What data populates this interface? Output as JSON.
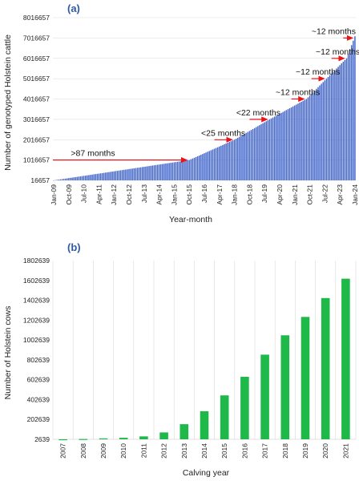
{
  "colors": {
    "bar_a": "#3f63c9",
    "bar_b": "#1fb94a",
    "arrow": "#e8141a",
    "panel_label": "#2e5aa7",
    "grid": "#d9d9d9"
  },
  "chart_data": [
    {
      "type": "bar",
      "panel_label": "(a)",
      "xlabel": "Year-month",
      "ylabel": "Number of genotyped Holstein cattle",
      "ylim": [
        16657,
        8016657
      ],
      "yticks": [
        "8016657",
        "7016657",
        "6016657",
        "5016657",
        "4016657",
        "3016657",
        "2016657",
        "1016657",
        "16657"
      ],
      "xticks": [
        "Jan-09",
        "Oct-09",
        "Jul-10",
        "Apr-11",
        "Jan-12",
        "Oct-12",
        "Jul-13",
        "Apr-14",
        "Jan-15",
        "Oct-15",
        "Jul-16",
        "Apr-17",
        "Jan-18",
        "Oct-18",
        "Jul-19",
        "Apr-20",
        "Jan-21",
        "Oct-21",
        "Jul-22",
        "Apr-23",
        "Jan-24"
      ],
      "grid": "horizontal",
      "series_shape": "monthly cumulative counts, Jan-09 to Jan-24, rising from about 16657 to about 7100000",
      "key_values": [
        {
          "x": "Jan-09",
          "y": 16657
        },
        {
          "x": "Oct-15",
          "y": 1016657
        },
        {
          "x": "Jan-18",
          "y": 2016657
        },
        {
          "x": "Oct-19",
          "y": 3016657
        },
        {
          "x": "Aug-21",
          "y": 4016657
        },
        {
          "x": "Aug-22",
          "y": 5016657
        },
        {
          "x": "Aug-23",
          "y": 6016657
        },
        {
          "x": "Jan-24",
          "y": 7100000
        }
      ],
      "annotations": [
        {
          "text": ">87 months",
          "y": 1016657,
          "from": "Jan-09",
          "to": "Oct-15"
        },
        {
          "text": "<25 months",
          "y": 2016657,
          "from": "Jan-17",
          "to": "Jan-18"
        },
        {
          "text": "<22 months",
          "y": 3016657,
          "from": "Oct-18",
          "to": "Oct-19"
        },
        {
          "text": "~12 months",
          "y": 4016657,
          "from": "Nov-20",
          "to": "Aug-21"
        },
        {
          "text": "~12 months",
          "y": 5016657,
          "from": "Nov-21",
          "to": "Aug-22"
        },
        {
          "text": "~12 months",
          "y": 6016657,
          "from": "Nov-22",
          "to": "Aug-23"
        },
        {
          "text": "~12 months",
          "y": 7016657,
          "from": "Jun-23",
          "to": "Jan-24"
        }
      ]
    },
    {
      "type": "bar",
      "panel_label": "(b)",
      "xlabel": "Calving year",
      "ylabel": "Number of Holstein cows",
      "ylim": [
        2639,
        1802639
      ],
      "yticks": [
        "1802639",
        "1602639",
        "1402639",
        "1202639",
        "1002639",
        "802639",
        "602639",
        "402639",
        "202639",
        "2639"
      ],
      "categories": [
        "2007",
        "2008",
        "2009",
        "2010",
        "2011",
        "2012",
        "2013",
        "2014",
        "2015",
        "2016",
        "2017",
        "2018",
        "2019",
        "2020",
        "2021"
      ],
      "values": [
        3000,
        6000,
        12000,
        18000,
        32000,
        72000,
        155000,
        285000,
        445000,
        632000,
        855000,
        1050000,
        1235000,
        1425000,
        1620000
      ],
      "grid": "vertical"
    }
  ]
}
